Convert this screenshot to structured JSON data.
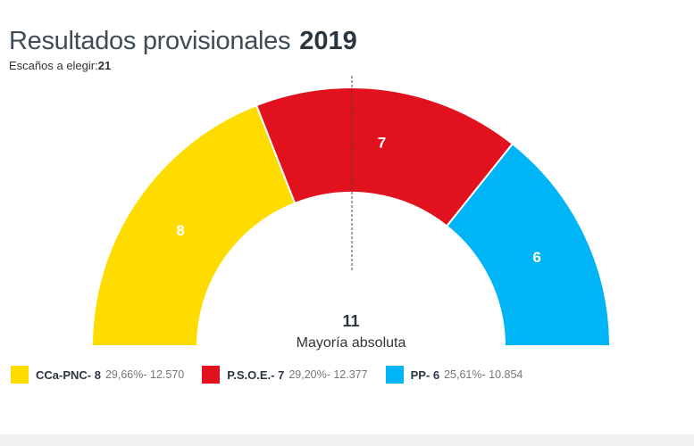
{
  "header": {
    "title": "Resultados provisionales",
    "year": "2019",
    "seats_label": "Escaños a elegir:",
    "seats_total": "21"
  },
  "chart_data": {
    "type": "pie",
    "variant": "semicircle-parliament",
    "total_seats": 21,
    "majority": {
      "value": "11",
      "label": "Mayoría absoluta"
    },
    "series": [
      {
        "name": "CCa-PNC",
        "seats": 8,
        "seat_label": "8",
        "percent": "29,66%",
        "votes": "12.570",
        "color": "#FFDC00"
      },
      {
        "name": "P.S.O.E.",
        "seats": 7,
        "seat_label": "7",
        "percent": "29,20%",
        "votes": "12.377",
        "color": "#E1121E"
      },
      {
        "name": "PP",
        "seats": 6,
        "seat_label": "6",
        "percent": "25,61%",
        "votes": "10.854",
        "color": "#00B5F5"
      }
    ]
  },
  "legend": {
    "items": [
      {
        "label": "CCa-PNC- 8",
        "stats": "29,66%- 12.570",
        "color": "#FFDC00"
      },
      {
        "label": "P.S.O.E.- 7",
        "stats": "29,20%- 12.377",
        "color": "#E1121E"
      },
      {
        "label": "PP- 6",
        "stats": "25,61%- 10.854",
        "color": "#00B5F5"
      }
    ]
  }
}
